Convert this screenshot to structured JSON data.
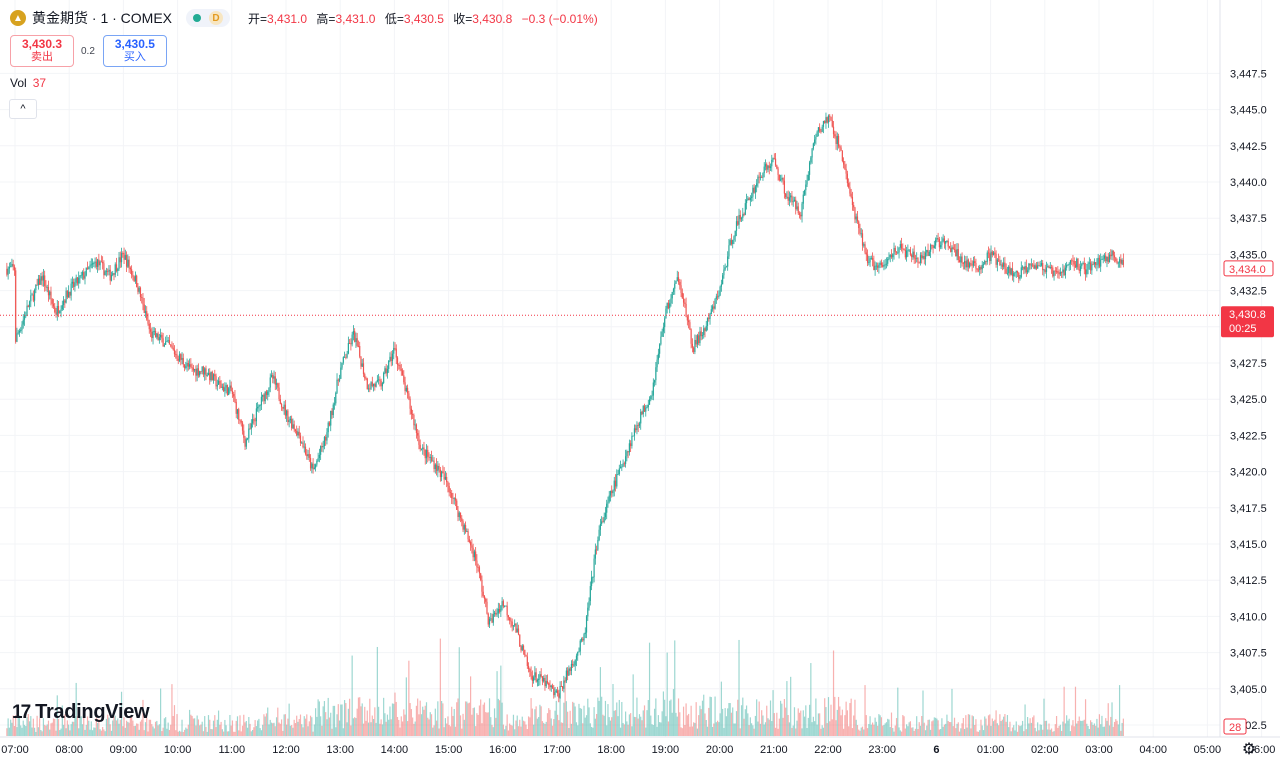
{
  "legend": {
    "logo_icon": "gold-coin-icon",
    "symbol": "黄金期货 · 1 · COMEX",
    "market_status": "open",
    "interval_badge": "D",
    "open_label": "开=",
    "open": "3,431.0",
    "high_label": "高=",
    "high": "3,431.0",
    "low_label": "低=",
    "low": "3,430.5",
    "close_label": "收=",
    "close": "3,430.8",
    "change": "−0.3 (−0.01%)"
  },
  "quote": {
    "sell_price": "3,430.3",
    "sell_label": "卖出",
    "spread": "0.2",
    "buy_price": "3,430.5",
    "buy_label": "买入"
  },
  "volume_legend": {
    "label": "Vol",
    "value": "37"
  },
  "collapse_button": "^",
  "brand": {
    "mark": "17",
    "name": "TradingView"
  },
  "colors": {
    "up": "#26a69a",
    "down": "#ef5350",
    "accent": "#2962ff",
    "last_price": "#f23645"
  },
  "chart_data": {
    "type": "candlestick",
    "y_ticks": [
      3402.5,
      3405.0,
      3407.5,
      3410.0,
      3412.5,
      3415.0,
      3417.5,
      3420.0,
      3422.5,
      3425.0,
      3427.5,
      3430.0,
      3432.5,
      3435.0,
      3437.5,
      3440.0,
      3442.5,
      3445.0,
      3447.5
    ],
    "y_tick_labels": [
      "3,402.5",
      "3,405.0",
      "3,407.5",
      "3,410.0",
      "3,412.5",
      "3,415.0",
      "3,417.5",
      "3,420.0",
      "3,422.5",
      "3,425.0",
      "3,427.5",
      "3,430.0",
      "3,432.5",
      "3,435.0",
      "3,437.5",
      "3,440.0",
      "3,442.5",
      "3,445.0",
      "3,447.5"
    ],
    "x_tick_labels": [
      "07:00",
      "08:00",
      "09:00",
      "10:00",
      "11:00",
      "12:00",
      "13:00",
      "14:00",
      "15:00",
      "16:00",
      "17:00",
      "18:00",
      "19:00",
      "20:00",
      "21:00",
      "22:00",
      "23:00",
      "6",
      "01:00",
      "02:00",
      "03:00",
      "04:00",
      "05:00",
      "06:00"
    ],
    "x_tick_bold": "6",
    "price_path": [
      [
        0,
        3429.0
      ],
      [
        0.5,
        3431.5
      ],
      [
        1.0,
        3433.5
      ],
      [
        1.5,
        3431.0
      ],
      [
        2.0,
        3432.5
      ],
      [
        2.5,
        3433.5
      ],
      [
        3.0,
        3434.5
      ],
      [
        3.5,
        3433.5
      ],
      [
        4.0,
        3435.0
      ],
      [
        4.5,
        3433.0
      ],
      [
        5.0,
        3429.5
      ],
      [
        5.5,
        3429.0
      ],
      [
        6.0,
        3428.0
      ],
      [
        6.5,
        3427.0
      ],
      [
        7.0,
        3427.0
      ],
      [
        7.5,
        3426.0
      ],
      [
        8.0,
        3425.5
      ],
      [
        8.5,
        3422.0
      ],
      [
        9.0,
        3424.5
      ],
      [
        9.5,
        3426.5
      ],
      [
        10.0,
        3424.0
      ],
      [
        10.5,
        3422.5
      ],
      [
        11.0,
        3420.0
      ],
      [
        11.5,
        3422.5
      ],
      [
        12.0,
        3427.0
      ],
      [
        12.5,
        3429.5
      ],
      [
        13.0,
        3426.0
      ],
      [
        13.5,
        3426.0
      ],
      [
        14.0,
        3428.5
      ],
      [
        14.5,
        3425.0
      ],
      [
        15.0,
        3421.5
      ],
      [
        15.5,
        3420.5
      ],
      [
        16.0,
        3419.0
      ],
      [
        16.5,
        3416.5
      ],
      [
        17.0,
        3414.0
      ],
      [
        17.5,
        3409.5
      ],
      [
        18.0,
        3411.0
      ],
      [
        18.5,
        3409.0
      ],
      [
        19.0,
        3406.0
      ],
      [
        19.5,
        3405.5
      ],
      [
        20.0,
        3404.5
      ],
      [
        20.5,
        3406.5
      ],
      [
        21.0,
        3408.5
      ],
      [
        21.5,
        3415.5
      ],
      [
        22.0,
        3418.5
      ],
      [
        22.5,
        3421.0
      ],
      [
        23.0,
        3423.5
      ],
      [
        23.5,
        3425.5
      ],
      [
        24.0,
        3431.0
      ],
      [
        24.5,
        3433.5
      ],
      [
        25.0,
        3428.5
      ],
      [
        25.5,
        3430.0
      ],
      [
        26.0,
        3432.5
      ],
      [
        26.5,
        3436.5
      ],
      [
        27.0,
        3438.5
      ],
      [
        27.5,
        3440.5
      ],
      [
        28.0,
        3441.5
      ],
      [
        28.5,
        3439.0
      ],
      [
        29.0,
        3438.0
      ],
      [
        29.5,
        3443.0
      ],
      [
        30.0,
        3444.5
      ],
      [
        30.5,
        3442.0
      ],
      [
        31.0,
        3437.5
      ],
      [
        31.5,
        3434.5
      ],
      [
        32.0,
        3434.0
      ],
      [
        32.5,
        3435.5
      ],
      [
        33.0,
        3435.0
      ],
      [
        33.5,
        3434.5
      ],
      [
        34.0,
        3436.0
      ],
      [
        34.5,
        3435.5
      ],
      [
        35.0,
        3434.5
      ],
      [
        35.5,
        3434.0
      ],
      [
        36.0,
        3435.0
      ],
      [
        36.5,
        3434.0
      ],
      [
        37.0,
        3433.5
      ],
      [
        37.5,
        3434.5
      ],
      [
        38.0,
        3434.0
      ],
      [
        38.5,
        3433.5
      ],
      [
        39.0,
        3434.5
      ],
      [
        39.5,
        3434.0
      ],
      [
        40.0,
        3434.5
      ],
      [
        40.5,
        3435.0
      ],
      [
        41.0,
        3434.0
      ]
    ],
    "last_price": 3430.8,
    "last_price_label": "3,430.8",
    "countdown": "00:25",
    "prev_close_label": "3,434.0",
    "prev_close": 3434.0,
    "volume_axis_label": "28"
  },
  "axis_settings_icon": "gear-icon"
}
